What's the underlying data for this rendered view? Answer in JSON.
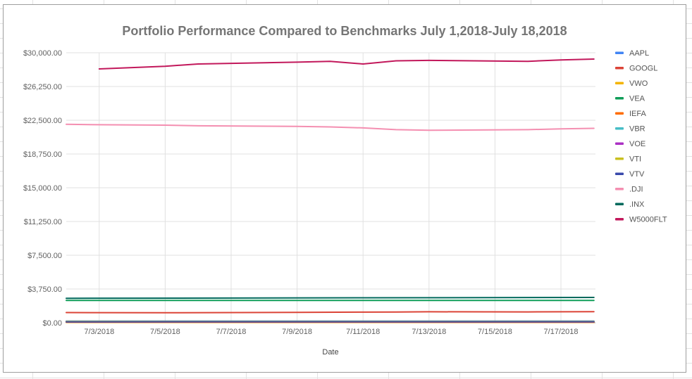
{
  "chart_data": {
    "type": "line",
    "title": "Portfolio Performance Compared to Benchmarks July 1,2018-July 18,2018",
    "xlabel": "Date",
    "ylabel": "",
    "y_ticks": [
      "$0.00",
      "$3,750.00",
      "$7,500.00",
      "$11,250.00",
      "$15,000.00",
      "$18,750.00",
      "$22,500.00",
      "$26,250.00",
      "$30,000.00"
    ],
    "ylim": [
      0,
      30000
    ],
    "x_ticks": [
      "7/3/2018",
      "7/5/2018",
      "7/7/2018",
      "7/9/2018",
      "7/11/2018",
      "7/13/2018",
      "7/15/2018",
      "7/17/2018"
    ],
    "x_range": [
      "7/2/2018",
      "7/18/2018"
    ],
    "grid": true,
    "legend_position": "right",
    "series": [
      {
        "name": "AAPL",
        "color": "#4285f4",
        "x": [
          "7/2/2018",
          "7/18/2018"
        ],
        "y": [
          187,
          191
        ]
      },
      {
        "name": "GOOGL",
        "color": "#db4437",
        "x": [
          "7/2/2018",
          "7/5/2018",
          "7/9/2018",
          "7/11/2018",
          "7/12/2018",
          "7/13/2018",
          "7/16/2018",
          "7/18/2018"
        ],
        "y": [
          1130,
          1110,
          1150,
          1180,
          1190,
          1220,
          1200,
          1230
        ]
      },
      {
        "name": "VWO",
        "color": "#f4b400",
        "x": [
          "7/2/2018",
          "7/18/2018"
        ],
        "y": [
          42,
          43
        ]
      },
      {
        "name": "VEA",
        "color": "#0f9d58",
        "x": [
          "7/2/2018",
          "7/18/2018"
        ],
        "y": [
          2480,
          2480
        ]
      },
      {
        "name": "IEFA",
        "color": "#ff6d00",
        "x": [
          "7/2/2018",
          "7/18/2018"
        ],
        "y": [
          62,
          63
        ]
      },
      {
        "name": "VBR",
        "color": "#46bdc6",
        "x": [
          "7/2/2018",
          "7/18/2018"
        ],
        "y": [
          141,
          142
        ]
      },
      {
        "name": "VOE",
        "color": "#ab30c4",
        "x": [
          "7/2/2018",
          "7/18/2018"
        ],
        "y": [
          111,
          112
        ]
      },
      {
        "name": "VTI",
        "color": "#c9c020",
        "x": [
          "7/2/2018",
          "7/18/2018"
        ],
        "y": [
          145,
          146
        ]
      },
      {
        "name": "VTV",
        "color": "#3949ab",
        "x": [
          "7/2/2018",
          "7/18/2018"
        ],
        "y": [
          105,
          106
        ]
      },
      {
        "name": ".DJI",
        "color": "#f48fb1",
        "x": [
          "7/2/2018",
          "7/3/2018",
          "7/5/2018",
          "7/6/2018",
          "7/9/2018",
          "7/10/2018",
          "7/11/2018",
          "7/12/2018",
          "7/13/2018",
          "7/16/2018",
          "7/17/2018",
          "7/18/2018"
        ],
        "y": [
          22050,
          22000,
          21950,
          21880,
          21820,
          21760,
          21650,
          21450,
          21380,
          21450,
          21550,
          21600
        ]
      },
      {
        "name": ".INX",
        "color": "#00695c",
        "x": [
          "7/2/2018",
          "7/18/2018"
        ],
        "y": [
          2720,
          2815
        ]
      },
      {
        "name": "W5000FLT",
        "color": "#c2185b",
        "x": [
          "7/3/2018",
          "7/5/2018",
          "7/6/2018",
          "7/9/2018",
          "7/10/2018",
          "7/11/2018",
          "7/12/2018",
          "7/13/2018",
          "7/16/2018",
          "7/17/2018",
          "7/18/2018"
        ],
        "y": [
          28200,
          28500,
          28750,
          28950,
          29050,
          28750,
          29100,
          29150,
          29050,
          29200,
          29300
        ]
      }
    ]
  }
}
